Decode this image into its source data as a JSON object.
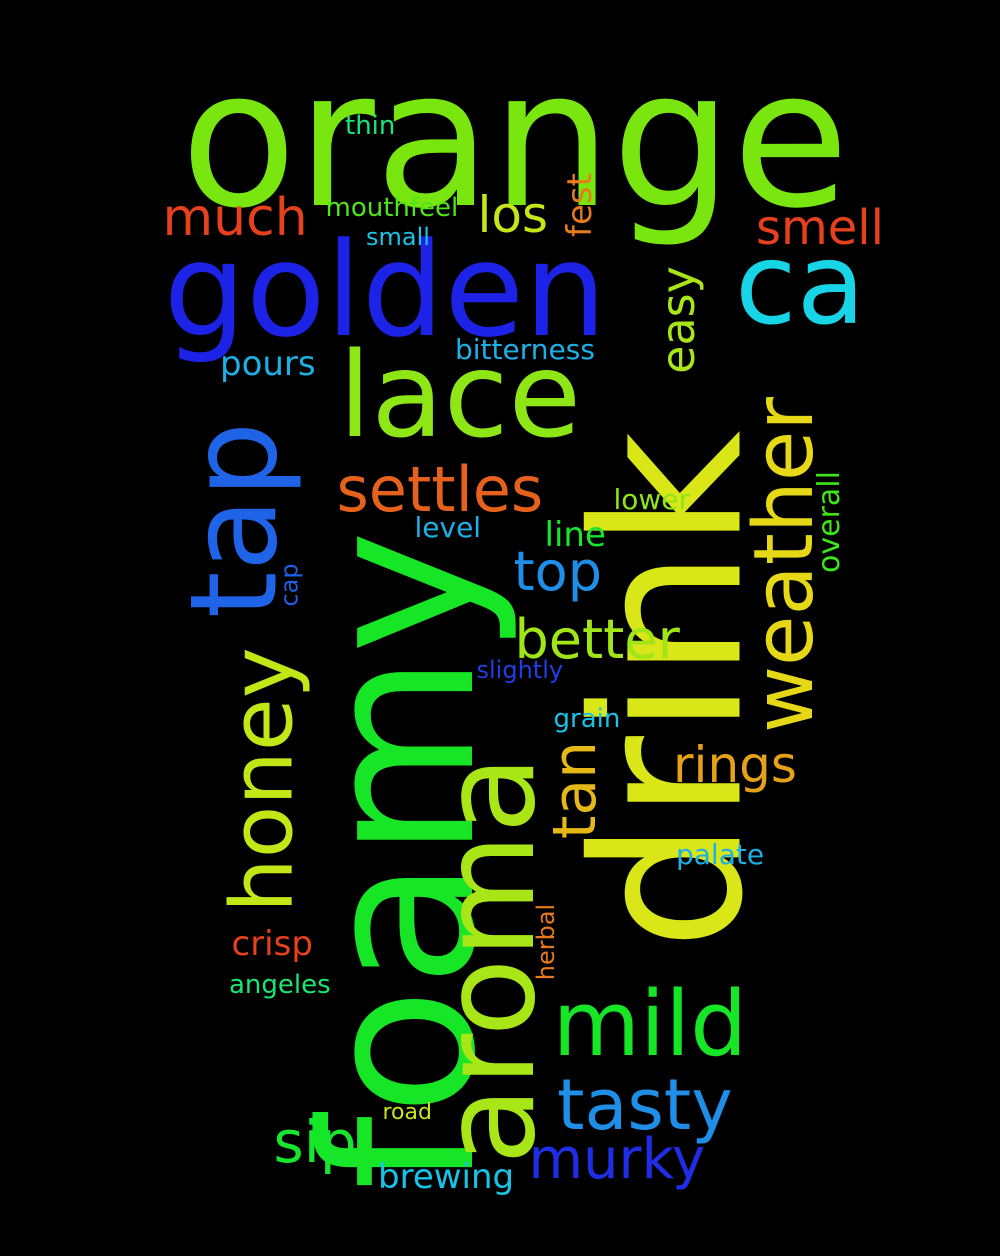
{
  "word_cloud": {
    "background": "#000000",
    "words": [
      {
        "text": "orange",
        "color": "#7ae60f"
      },
      {
        "text": "drink",
        "color": "#d9e617"
      },
      {
        "text": "foamy",
        "color": "#17e626"
      },
      {
        "text": "golden",
        "color": "#1c22e6"
      },
      {
        "text": "aroma",
        "color": "#a8e617"
      },
      {
        "text": "lace",
        "color": "#8ee617"
      },
      {
        "text": "tap",
        "color": "#1f63e6"
      },
      {
        "text": "ca",
        "color": "#17d5e6"
      },
      {
        "text": "weather",
        "color": "#e6d817"
      },
      {
        "text": "honey",
        "color": "#c3e617"
      },
      {
        "text": "mild",
        "color": "#17e626"
      },
      {
        "text": "tasty",
        "color": "#1f8ee6"
      },
      {
        "text": "settles",
        "color": "#e6621c"
      },
      {
        "text": "murky",
        "color": "#1f2ee6"
      },
      {
        "text": "better",
        "color": "#a0e617"
      },
      {
        "text": "top",
        "color": "#1f8ee6"
      },
      {
        "text": "sip",
        "color": "#17e62e"
      },
      {
        "text": "rings",
        "color": "#e6a217"
      },
      {
        "text": "tan",
        "color": "#e6b817"
      },
      {
        "text": "much",
        "color": "#e6401c"
      },
      {
        "text": "smell",
        "color": "#e6401c"
      },
      {
        "text": "los",
        "color": "#c8e617"
      },
      {
        "text": "easy",
        "color": "#a8e617"
      },
      {
        "text": "pours",
        "color": "#1cb0e6"
      },
      {
        "text": "fest",
        "color": "#e67a1c"
      },
      {
        "text": "line",
        "color": "#17e62e"
      },
      {
        "text": "crisp",
        "color": "#e6401c"
      },
      {
        "text": "brewing",
        "color": "#17c3e6"
      },
      {
        "text": "bitterness",
        "color": "#1cb0e6"
      },
      {
        "text": "overall",
        "color": "#3ee617"
      },
      {
        "text": "lower",
        "color": "#8ee617"
      },
      {
        "text": "level",
        "color": "#1cb0e6"
      },
      {
        "text": "mouthfeel",
        "color": "#4ee617"
      },
      {
        "text": "palate",
        "color": "#1cb0e6"
      },
      {
        "text": "angeles",
        "color": "#17e672"
      },
      {
        "text": "thin",
        "color": "#17e67a"
      },
      {
        "text": "small",
        "color": "#1cc3e6"
      },
      {
        "text": "grain",
        "color": "#17c3e6"
      },
      {
        "text": "slightly",
        "color": "#1f3ee6"
      },
      {
        "text": "herbal",
        "color": "#e67a1c"
      },
      {
        "text": "cap",
        "color": "#1f5ee6"
      },
      {
        "text": "road",
        "color": "#c8e617"
      }
    ]
  }
}
